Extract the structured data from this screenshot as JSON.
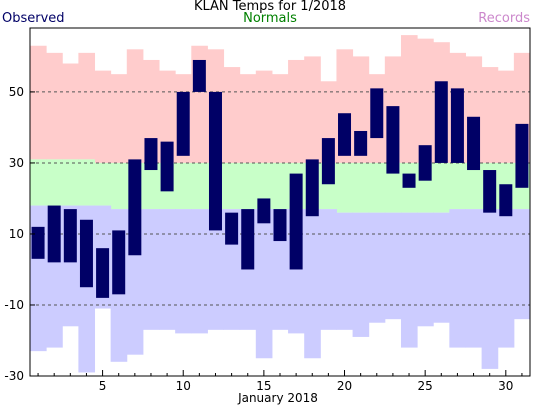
{
  "chart_data": {
    "type": "bar",
    "title": "KLAN Temps for 1/2018",
    "xlabel": "January 2018",
    "ylabel": "",
    "xlim": [
      0.5,
      31.5
    ],
    "ylim": [
      -30,
      68
    ],
    "x_ticks": [
      5,
      10,
      15,
      20,
      25,
      30
    ],
    "y_ticks": [
      -30,
      -10,
      10,
      30,
      50
    ],
    "gridlines_y": [
      -10,
      10,
      30,
      50
    ],
    "legend": {
      "placement": "top",
      "observed": "Observed",
      "normals": "Normals",
      "records": "Records"
    },
    "colors": {
      "observed": "#000066",
      "normals": "#c8ffc8",
      "records": "#ffcccc",
      "record_low": "#ccccff",
      "normals_label": "#008000",
      "records_label": "#cc88cc"
    },
    "days": [
      1,
      2,
      3,
      4,
      5,
      6,
      7,
      8,
      9,
      10,
      11,
      12,
      13,
      14,
      15,
      16,
      17,
      18,
      19,
      20,
      21,
      22,
      23,
      24,
      25,
      26,
      27,
      28,
      29,
      30,
      31
    ],
    "observed_high": [
      12,
      18,
      17,
      14,
      6,
      11,
      31,
      37,
      36,
      50,
      59,
      50,
      16,
      17,
      20,
      17,
      27,
      31,
      37,
      44,
      39,
      51,
      46,
      27,
      35,
      53,
      51,
      43,
      28,
      24,
      41
    ],
    "observed_low": [
      3,
      2,
      2,
      -5,
      -8,
      -7,
      4,
      28,
      22,
      32,
      50,
      11,
      7,
      0,
      13,
      8,
      0,
      15,
      24,
      32,
      32,
      37,
      27,
      23,
      25,
      30,
      30,
      28,
      16,
      15,
      23
    ],
    "normal_high": [
      31,
      31,
      31,
      31,
      30,
      30,
      30,
      30,
      30,
      30,
      30,
      30,
      30,
      30,
      30,
      30,
      30,
      30,
      30,
      30,
      30,
      30,
      30,
      30,
      30,
      30,
      30,
      30,
      30,
      30,
      30
    ],
    "normal_low": [
      18,
      18,
      18,
      18,
      18,
      17,
      17,
      17,
      17,
      17,
      17,
      17,
      17,
      17,
      17,
      17,
      17,
      17,
      17,
      16,
      16,
      16,
      16,
      16,
      16,
      16,
      17,
      17,
      17,
      17,
      17
    ],
    "record_high": [
      63,
      61,
      58,
      61,
      56,
      55,
      62,
      59,
      56,
      55,
      63,
      62,
      57,
      55,
      56,
      55,
      59,
      60,
      53,
      62,
      60,
      55,
      60,
      66,
      65,
      64,
      61,
      60,
      57,
      56,
      61
    ],
    "record_low": [
      -23,
      -22,
      -16,
      -29,
      -11,
      -26,
      -24,
      -17,
      -17,
      -18,
      -18,
      -17,
      -17,
      -17,
      -25,
      -17,
      -18,
      -25,
      -17,
      -17,
      -19,
      -15,
      -14,
      -22,
      -16,
      -15,
      -22,
      -22,
      -28,
      -22,
      -14
    ]
  }
}
